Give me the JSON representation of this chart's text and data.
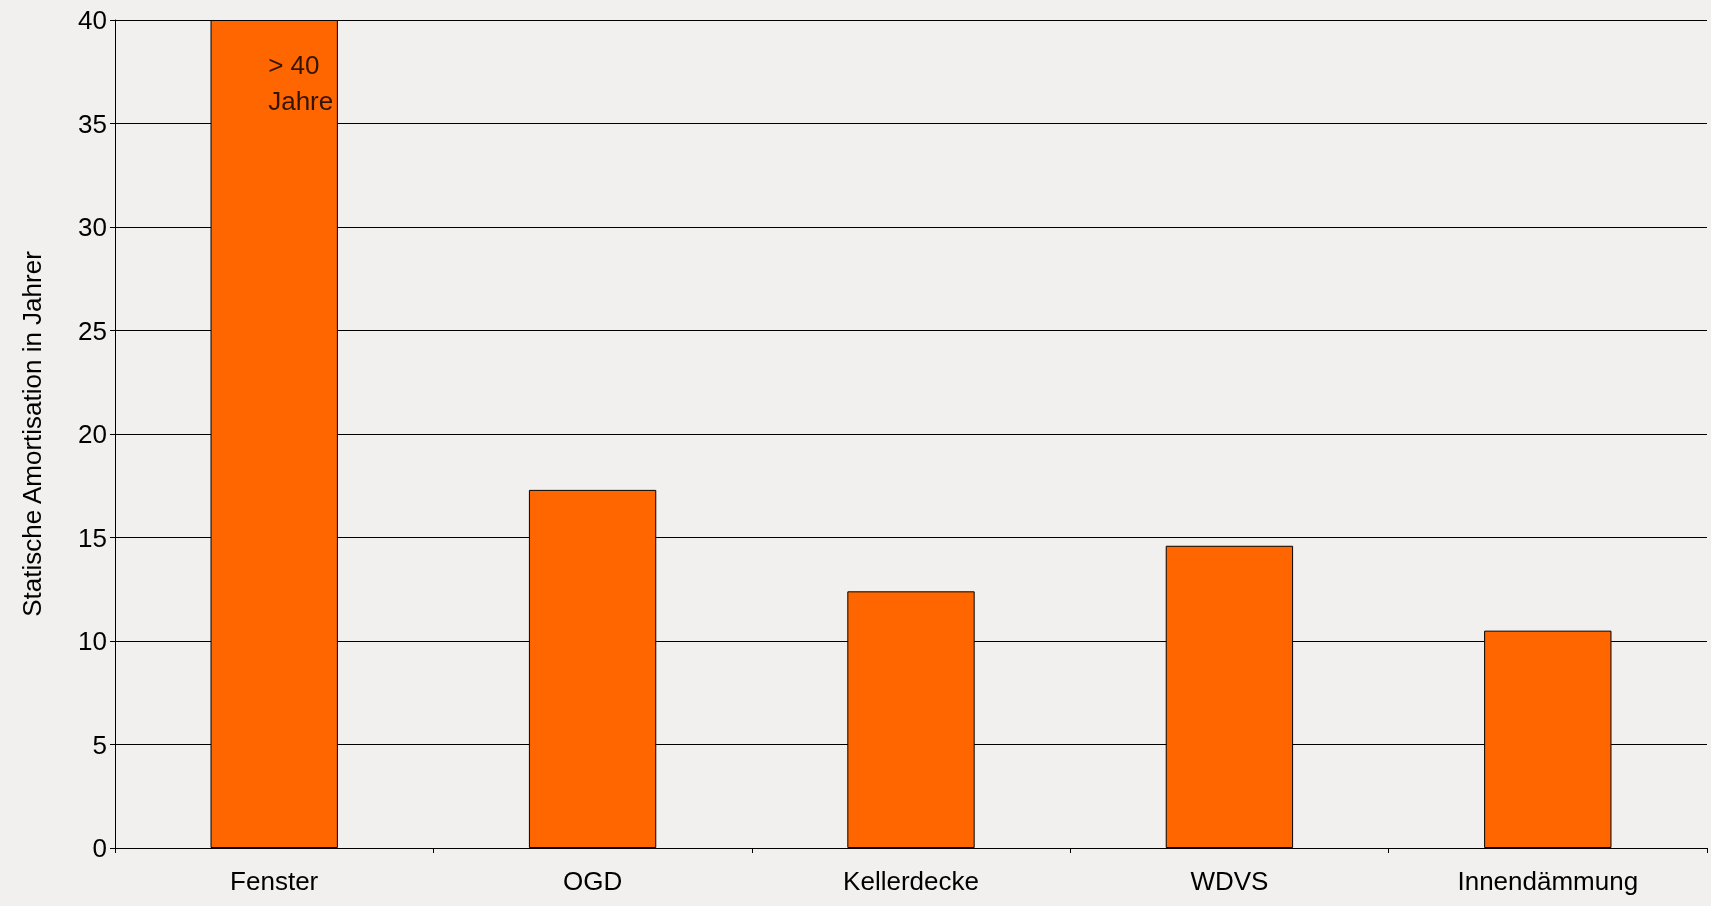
{
  "chart_data": {
    "type": "bar",
    "ylabel": "Statische Amortisation in Jahrer",
    "categories": [
      "Fenster",
      "OGD",
      "Kellerdecke",
      "WDVS",
      "Innendämmung"
    ],
    "values": [
      40,
      17.3,
      12.4,
      14.6,
      10.5
    ],
    "color": "#ff6600",
    "ylim": [
      0,
      40
    ],
    "yticks": [
      0,
      5,
      10,
      15,
      20,
      25,
      30,
      35,
      40
    ],
    "grid": "y",
    "annotations": [
      {
        "text": "> 40\nJahre",
        "x": "Fenster",
        "y": 40
      }
    ]
  }
}
